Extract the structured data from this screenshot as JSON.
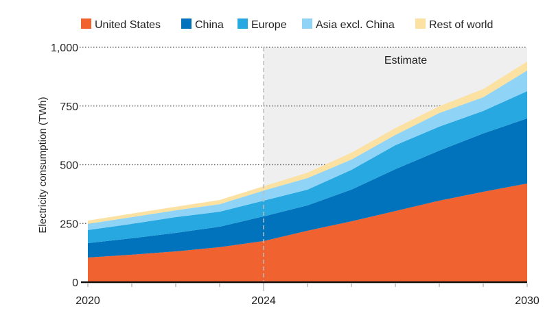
{
  "chart_data": {
    "type": "area",
    "stacked": true,
    "title": "",
    "xlabel": "",
    "ylabel": "Electricity consumption (TWh)",
    "x": [
      2020,
      2021,
      2022,
      2023,
      2024,
      2025,
      2026,
      2027,
      2028,
      2029,
      2030
    ],
    "xticks": [
      2020,
      2024,
      2030
    ],
    "yticks": [
      0,
      250,
      500,
      750,
      1000
    ],
    "ytick_labels": [
      "0",
      "250",
      "500",
      "750",
      "1,000"
    ],
    "ylim": [
      0,
      1000
    ],
    "grid": "horizontal dotted",
    "legend": "top",
    "annotation": {
      "label": "Estimate",
      "from": 2024,
      "to": 2030,
      "shade": "#efefef"
    },
    "series": [
      {
        "name": "United States",
        "color": "#f0622f",
        "values": [
          105,
          117,
          131,
          149,
          175,
          219,
          259,
          303,
          347,
          385,
          420
        ]
      },
      {
        "name": "China",
        "color": "#0073bc",
        "values": [
          61,
          70,
          79,
          87,
          105,
          108,
          135,
          178,
          213,
          248,
          277
        ]
      },
      {
        "name": "Europe",
        "color": "#27a8e0",
        "values": [
          56,
          61,
          67,
          64,
          67,
          67,
          84,
          102,
          102,
          96,
          116
        ]
      },
      {
        "name": "Asia excl. China",
        "color": "#8fd4f6",
        "values": [
          26,
          29,
          29,
          32,
          43,
          49,
          44,
          44,
          58,
          58,
          88
        ]
      },
      {
        "name": "Rest of world",
        "color": "#fbe1a2",
        "values": [
          14,
          15,
          15,
          18,
          18,
          23,
          29,
          29,
          29,
          35,
          38
        ]
      }
    ]
  }
}
